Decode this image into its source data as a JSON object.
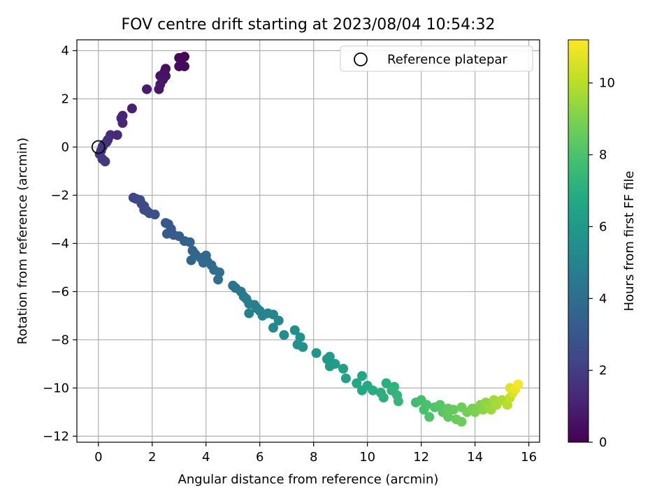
{
  "chart_data": {
    "type": "scatter",
    "title": "FOV centre drift starting at 2023/08/04 10:54:32",
    "xlabel": "Angular distance from reference (arcmin)",
    "ylabel": "Rotation from reference (arcmin)",
    "xlim": [
      -0.8,
      16.4
    ],
    "ylim": [
      -12.25,
      4.45
    ],
    "xticks": [
      0,
      2,
      4,
      6,
      8,
      10,
      12,
      14,
      16
    ],
    "yticks": [
      -12,
      -10,
      -8,
      -6,
      -4,
      -2,
      0,
      2,
      4
    ],
    "grid": true,
    "legend": {
      "position": "top-right",
      "entries": [
        "Reference platepar"
      ]
    },
    "reference_point": {
      "x": 0,
      "y": 0,
      "label": "Reference platepar"
    },
    "colorbar": {
      "label": "Hours from first FF file",
      "colormap": "viridis",
      "range": [
        0,
        11.2
      ],
      "ticks": [
        0,
        2,
        4,
        6,
        8,
        10
      ]
    },
    "series": [
      {
        "color_by": "hours",
        "points": [
          {
            "x": 3.2,
            "y": 3.75,
            "c": 0.1
          },
          {
            "x": 3.1,
            "y": 3.7,
            "c": 0.15
          },
          {
            "x": 3.0,
            "y": 3.7,
            "c": 0.2
          },
          {
            "x": 3.2,
            "y": 3.35,
            "c": 0.25
          },
          {
            "x": 3.0,
            "y": 3.35,
            "c": 0.3
          },
          {
            "x": 2.5,
            "y": 3.25,
            "c": 0.45
          },
          {
            "x": 2.45,
            "y": 3.1,
            "c": 0.5
          },
          {
            "x": 2.5,
            "y": 2.95,
            "c": 0.55
          },
          {
            "x": 2.3,
            "y": 2.95,
            "c": 0.6
          },
          {
            "x": 2.4,
            "y": 2.8,
            "c": 0.65
          },
          {
            "x": 2.3,
            "y": 2.6,
            "c": 0.7
          },
          {
            "x": 2.25,
            "y": 2.4,
            "c": 0.75
          },
          {
            "x": 1.8,
            "y": 2.4,
            "c": 0.85
          },
          {
            "x": 1.25,
            "y": 1.6,
            "c": 1.0
          },
          {
            "x": 0.9,
            "y": 1.3,
            "c": 1.1
          },
          {
            "x": 0.85,
            "y": 1.2,
            "c": 1.15
          },
          {
            "x": 0.9,
            "y": 1.0,
            "c": 1.2
          },
          {
            "x": 0.7,
            "y": 0.5,
            "c": 1.35
          },
          {
            "x": 0.45,
            "y": 0.5,
            "c": 1.4
          },
          {
            "x": 0.35,
            "y": 0.3,
            "c": 1.5
          },
          {
            "x": 0.3,
            "y": 0.2,
            "c": 1.55
          },
          {
            "x": 0.2,
            "y": 0.1,
            "c": 1.6
          },
          {
            "x": 0.15,
            "y": 0.0,
            "c": 1.65
          },
          {
            "x": 0.1,
            "y": -0.15,
            "c": 1.7
          },
          {
            "x": 0.05,
            "y": -0.3,
            "c": 1.75
          },
          {
            "x": 0.15,
            "y": -0.5,
            "c": 1.8
          },
          {
            "x": 0.25,
            "y": -0.6,
            "c": 1.85
          },
          {
            "x": 1.3,
            "y": -2.1,
            "c": 2.3
          },
          {
            "x": 1.4,
            "y": -2.15,
            "c": 2.35
          },
          {
            "x": 1.55,
            "y": -2.2,
            "c": 2.4
          },
          {
            "x": 1.6,
            "y": -2.35,
            "c": 2.45
          },
          {
            "x": 1.7,
            "y": -2.45,
            "c": 2.5
          },
          {
            "x": 1.7,
            "y": -2.6,
            "c": 2.55
          },
          {
            "x": 1.8,
            "y": -2.65,
            "c": 2.6
          },
          {
            "x": 1.9,
            "y": -2.75,
            "c": 2.65
          },
          {
            "x": 2.1,
            "y": -2.8,
            "c": 2.7
          },
          {
            "x": 2.5,
            "y": -3.15,
            "c": 3.0
          },
          {
            "x": 2.6,
            "y": -3.2,
            "c": 3.05
          },
          {
            "x": 2.7,
            "y": -3.4,
            "c": 3.1
          },
          {
            "x": 2.55,
            "y": -3.6,
            "c": 3.15
          },
          {
            "x": 2.8,
            "y": -3.65,
            "c": 3.2
          },
          {
            "x": 3.0,
            "y": -3.7,
            "c": 3.3
          },
          {
            "x": 3.2,
            "y": -3.9,
            "c": 3.4
          },
          {
            "x": 3.4,
            "y": -3.95,
            "c": 3.45
          },
          {
            "x": 3.5,
            "y": -4.3,
            "c": 3.55
          },
          {
            "x": 3.6,
            "y": -4.45,
            "c": 3.6
          },
          {
            "x": 3.45,
            "y": -4.7,
            "c": 3.65
          },
          {
            "x": 3.8,
            "y": -4.6,
            "c": 3.7
          },
          {
            "x": 3.9,
            "y": -4.8,
            "c": 3.75
          },
          {
            "x": 4.0,
            "y": -4.5,
            "c": 3.8
          },
          {
            "x": 4.05,
            "y": -4.75,
            "c": 3.85
          },
          {
            "x": 4.2,
            "y": -4.9,
            "c": 3.9
          },
          {
            "x": 4.3,
            "y": -5.1,
            "c": 4.0
          },
          {
            "x": 4.5,
            "y": -5.2,
            "c": 4.05
          },
          {
            "x": 4.45,
            "y": -5.5,
            "c": 4.1
          },
          {
            "x": 5.0,
            "y": -5.75,
            "c": 4.3
          },
          {
            "x": 5.1,
            "y": -5.85,
            "c": 4.35
          },
          {
            "x": 5.3,
            "y": -6.0,
            "c": 4.45
          },
          {
            "x": 5.4,
            "y": -6.2,
            "c": 4.5
          },
          {
            "x": 5.5,
            "y": -6.3,
            "c": 4.6
          },
          {
            "x": 5.6,
            "y": -6.5,
            "c": 4.65
          },
          {
            "x": 5.8,
            "y": -6.55,
            "c": 4.7
          },
          {
            "x": 5.9,
            "y": -6.7,
            "c": 4.8
          },
          {
            "x": 5.6,
            "y": -6.9,
            "c": 4.85
          },
          {
            "x": 6.0,
            "y": -6.8,
            "c": 4.9
          },
          {
            "x": 6.1,
            "y": -7.0,
            "c": 5.0
          },
          {
            "x": 6.3,
            "y": -6.9,
            "c": 5.05
          },
          {
            "x": 6.5,
            "y": -6.95,
            "c": 5.1
          },
          {
            "x": 6.7,
            "y": -7.2,
            "c": 5.2
          },
          {
            "x": 6.5,
            "y": -7.5,
            "c": 5.25
          },
          {
            "x": 6.9,
            "y": -7.8,
            "c": 5.4
          },
          {
            "x": 7.3,
            "y": -7.6,
            "c": 5.5
          },
          {
            "x": 7.5,
            "y": -7.9,
            "c": 5.6
          },
          {
            "x": 7.4,
            "y": -8.2,
            "c": 5.65
          },
          {
            "x": 7.6,
            "y": -8.3,
            "c": 5.7
          },
          {
            "x": 8.1,
            "y": -8.55,
            "c": 5.9
          },
          {
            "x": 8.5,
            "y": -8.8,
            "c": 6.0
          },
          {
            "x": 8.6,
            "y": -8.7,
            "c": 6.05
          },
          {
            "x": 8.6,
            "y": -9.1,
            "c": 6.1
          },
          {
            "x": 8.8,
            "y": -9.0,
            "c": 6.15
          },
          {
            "x": 9.1,
            "y": -9.2,
            "c": 6.3
          },
          {
            "x": 9.2,
            "y": -9.6,
            "c": 6.4
          },
          {
            "x": 9.6,
            "y": -9.8,
            "c": 6.6
          },
          {
            "x": 9.8,
            "y": -9.5,
            "c": 6.65
          },
          {
            "x": 9.8,
            "y": -10.1,
            "c": 6.7
          },
          {
            "x": 10.0,
            "y": -9.9,
            "c": 6.8
          },
          {
            "x": 10.2,
            "y": -10.1,
            "c": 6.9
          },
          {
            "x": 10.5,
            "y": -10.2,
            "c": 7.0
          },
          {
            "x": 10.7,
            "y": -9.8,
            "c": 7.05
          },
          {
            "x": 10.6,
            "y": -10.4,
            "c": 7.1
          },
          {
            "x": 10.9,
            "y": -10.1,
            "c": 7.2
          },
          {
            "x": 11.0,
            "y": -9.95,
            "c": 7.25
          },
          {
            "x": 11.1,
            "y": -10.3,
            "c": 7.3
          },
          {
            "x": 11.15,
            "y": -10.55,
            "c": 7.35
          },
          {
            "x": 11.8,
            "y": -10.6,
            "c": 7.7
          },
          {
            "x": 12.0,
            "y": -10.5,
            "c": 7.8
          },
          {
            "x": 12.1,
            "y": -10.9,
            "c": 7.9
          },
          {
            "x": 12.2,
            "y": -10.7,
            "c": 7.95
          },
          {
            "x": 12.3,
            "y": -11.2,
            "c": 8.05
          },
          {
            "x": 12.5,
            "y": -10.8,
            "c": 8.1
          },
          {
            "x": 12.7,
            "y": -10.7,
            "c": 8.2
          },
          {
            "x": 12.8,
            "y": -11.0,
            "c": 8.3
          },
          {
            "x": 13.0,
            "y": -11.2,
            "c": 8.4
          },
          {
            "x": 13.0,
            "y": -10.85,
            "c": 8.45
          },
          {
            "x": 13.2,
            "y": -10.9,
            "c": 8.5
          },
          {
            "x": 13.3,
            "y": -11.3,
            "c": 8.6
          },
          {
            "x": 13.5,
            "y": -11.4,
            "c": 8.65
          },
          {
            "x": 13.5,
            "y": -10.8,
            "c": 8.7
          },
          {
            "x": 13.7,
            "y": -11.0,
            "c": 8.8
          },
          {
            "x": 13.9,
            "y": -10.85,
            "c": 8.9
          },
          {
            "x": 14.0,
            "y": -11.0,
            "c": 9.0
          },
          {
            "x": 14.2,
            "y": -10.7,
            "c": 9.1
          },
          {
            "x": 14.3,
            "y": -10.9,
            "c": 9.2
          },
          {
            "x": 14.4,
            "y": -10.6,
            "c": 9.3
          },
          {
            "x": 14.5,
            "y": -10.8,
            "c": 9.4
          },
          {
            "x": 14.6,
            "y": -10.9,
            "c": 9.5
          },
          {
            "x": 14.7,
            "y": -10.5,
            "c": 9.6
          },
          {
            "x": 14.8,
            "y": -10.7,
            "c": 9.7
          },
          {
            "x": 15.0,
            "y": -10.5,
            "c": 9.8
          },
          {
            "x": 15.2,
            "y": -10.7,
            "c": 10.0
          },
          {
            "x": 15.3,
            "y": -10.4,
            "c": 10.2
          },
          {
            "x": 15.4,
            "y": -10.2,
            "c": 10.5
          },
          {
            "x": 15.3,
            "y": -10.0,
            "c": 10.7
          },
          {
            "x": 15.5,
            "y": -10.05,
            "c": 10.9
          },
          {
            "x": 15.6,
            "y": -9.85,
            "c": 11.1
          }
        ]
      }
    ]
  }
}
